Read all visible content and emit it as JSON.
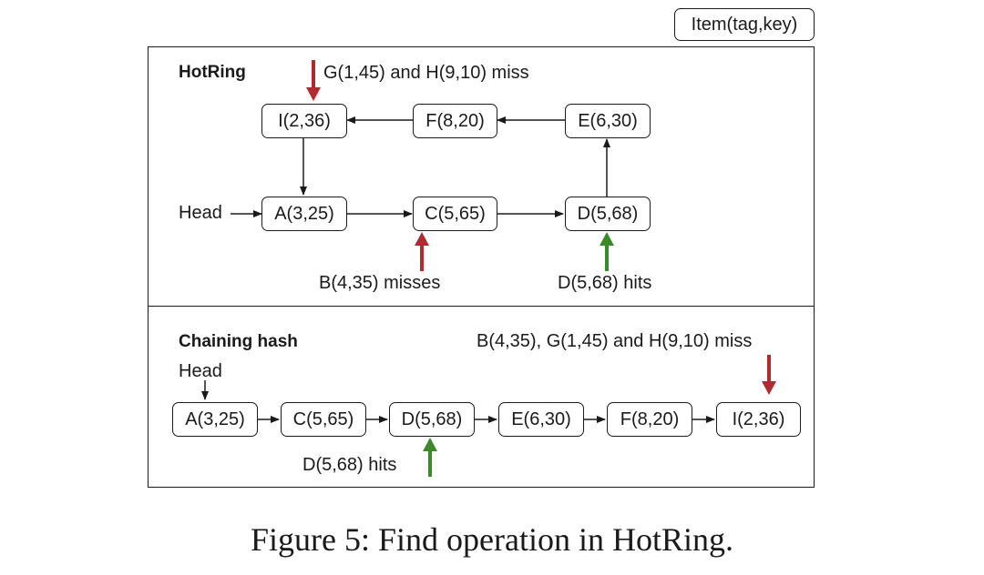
{
  "legend": {
    "label": "Item(tag,key)"
  },
  "hotring": {
    "title": "HotRing",
    "head_label": "Head",
    "nodes": [
      "I(2,36)",
      "F(8,20)",
      "E(6,30)",
      "A(3,25)",
      "C(5,65)",
      "D(5,68)"
    ],
    "miss_top_label": "G(1,45) and H(9,10) miss",
    "miss_bottom_label": "B(4,35) misses",
    "hit_label": "D(5,68) hits"
  },
  "chaining": {
    "title": "Chaining hash",
    "head_label": "Head",
    "nodes": [
      "A(3,25)",
      "C(5,65)",
      "D(5,68)",
      "E(6,30)",
      "F(8,20)",
      "I(2,36)"
    ],
    "miss_label": "B(4,35), G(1,45) and H(9,10) miss",
    "hit_label": "D(5,68) hits"
  },
  "caption": "Figure 5: Find operation in HotRing.",
  "colors": {
    "miss_arrow": "#b02a2f",
    "hit_arrow": "#3a8a2a",
    "line": "#1a1a1a"
  }
}
